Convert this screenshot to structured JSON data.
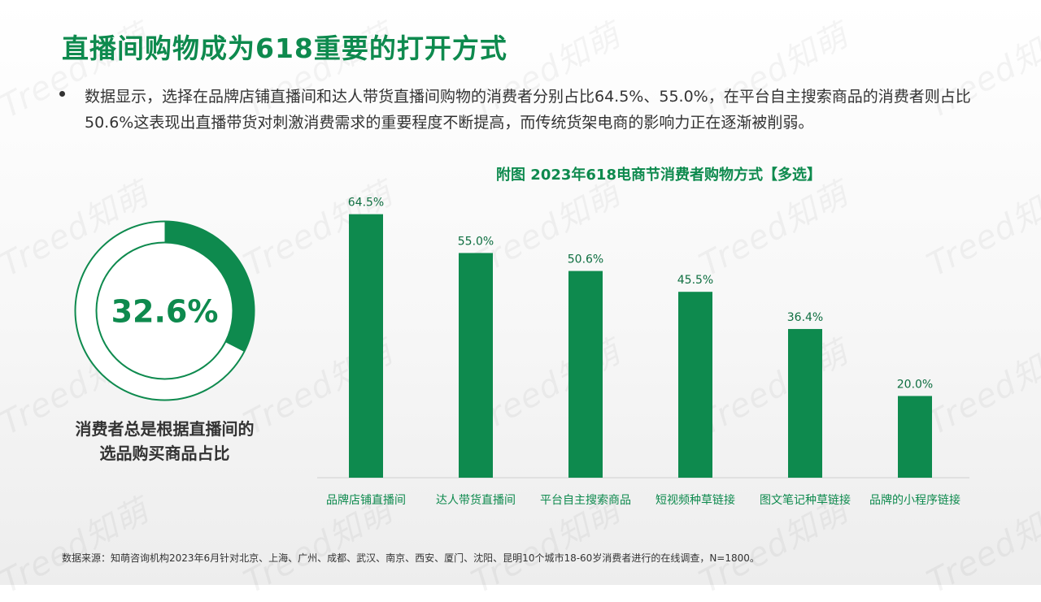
{
  "slide": {
    "title": "直播间购物成为618重要的打开方式",
    "bullet": "数据显示，选择在品牌店铺直播间和达人带货直播间购物的消费者分别占比64.5%、55.0%，在平台自主搜索商品的消费者则占比50.6%这表现出直播带货对刺激消费需求的重要程度不断提高，而传统货架电商的影响力正在逐渐被削弱。",
    "source": "数据来源：知萌咨询机构2023年6月针对北京、上海、广州、成都、武汉、南京、西安、厦门、沈阳、昆明10个城市18-60岁消费者进行的在线调查，N=1800。",
    "watermark_text": "Treed知萌"
  },
  "colors": {
    "accent": "#0e8a4e",
    "donut_track": "#ffffff",
    "donut_outline": "#0e8a4e"
  },
  "chart_data": [
    {
      "type": "pie",
      "style": "donut",
      "value": 32.6,
      "value_label": "32.6%",
      "label_lines": [
        "消费者总是根据直播间的",
        "选品购买商品占比"
      ]
    },
    {
      "type": "bar",
      "title": "附图 2023年618电商节消费者购物方式【多选】",
      "categories": [
        "品牌店铺直播间",
        "达人带货直播间",
        "平台自主搜索商品",
        "短视频种草链接",
        "图文笔记种草链接",
        "品牌的小程序链接"
      ],
      "values": [
        64.5,
        55.0,
        50.6,
        45.5,
        36.4,
        20.0
      ],
      "data_labels": [
        "64.5%",
        "55.0%",
        "50.6%",
        "45.5%",
        "36.4%",
        "20.0%"
      ],
      "ylim": [
        0,
        70
      ],
      "grid": false,
      "xlabel": "",
      "ylabel": ""
    }
  ]
}
